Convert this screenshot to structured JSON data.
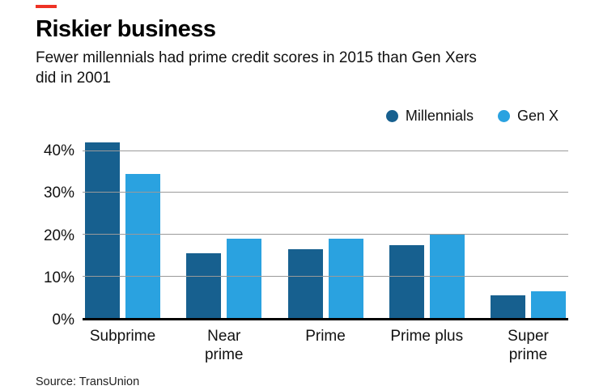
{
  "brand": {
    "accent_color": "#ee3224"
  },
  "header": {
    "title": "Riskier business",
    "subtitle": "Fewer millennials had prime credit scores in 2015 than Gen Xers did in 2001"
  },
  "legend": [
    {
      "label": "Millennials",
      "color": "#17608f"
    },
    {
      "label": "Gen X",
      "color": "#2aa2e0"
    }
  ],
  "source": "Source: TransUnion",
  "chart_data": {
    "type": "bar",
    "title": "Riskier business",
    "subtitle": "Fewer millennials had prime credit scores in 2015 than Gen Xers did in 2001",
    "categories": [
      "Subprime",
      "Near prime",
      "Prime",
      "Prime plus",
      "Super prime"
    ],
    "categories_display": [
      "Subprime",
      "Near\nprime",
      "Prime",
      "Prime plus",
      "Super\nprime"
    ],
    "series": [
      {
        "name": "Millennials",
        "color": "#17608f",
        "values": [
          42,
          15.5,
          16.5,
          17.5,
          5.5
        ]
      },
      {
        "name": "Gen X",
        "color": "#2aa2e0",
        "values": [
          34.5,
          19,
          19,
          20,
          6.5
        ]
      }
    ],
    "xlabel": "",
    "ylabel": "",
    "yticks": [
      0,
      10,
      20,
      30,
      40
    ],
    "ytick_labels": [
      "0%",
      "10%",
      "20%",
      "30%",
      "40%"
    ],
    "ylim": [
      0,
      44
    ],
    "grid": true,
    "legend_position": "top-right"
  }
}
